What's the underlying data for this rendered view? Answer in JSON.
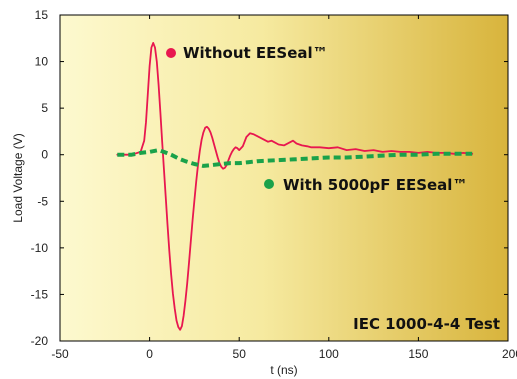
{
  "chart_data": {
    "type": "line",
    "title": "",
    "xlabel": "t (ns)",
    "ylabel": "Load Voltage (V)",
    "xlim": [
      -50,
      200
    ],
    "ylim": [
      -20,
      15
    ],
    "x_ticks": [
      -50,
      0,
      50,
      100,
      150,
      200
    ],
    "y_ticks": [
      -20,
      -15,
      -10,
      -5,
      0,
      5,
      10,
      15
    ],
    "grid": false,
    "background": "yellow-to-gold horizontal gradient",
    "series": [
      {
        "name": "Without EESeal™",
        "color": "#e8174f",
        "style": "solid",
        "x": [
          -18,
          -10,
          -5,
          -3,
          -2,
          -1,
          0,
          1,
          2,
          3,
          4,
          5,
          6,
          7,
          8,
          9,
          10,
          11,
          12,
          13,
          14,
          15,
          16,
          17,
          18,
          19,
          20,
          21,
          22,
          23,
          24,
          25,
          26,
          27,
          28,
          29,
          30,
          31,
          32,
          33,
          34,
          35,
          36,
          37,
          38,
          39,
          40,
          41,
          42,
          43,
          44,
          45,
          46,
          47,
          48,
          49,
          50,
          52,
          54,
          56,
          58,
          60,
          62,
          64,
          66,
          68,
          70,
          72,
          75,
          78,
          80,
          82,
          85,
          88,
          90,
          95,
          100,
          105,
          110,
          115,
          120,
          125,
          130,
          135,
          140,
          145,
          150,
          155,
          160,
          165,
          170,
          175,
          180
        ],
        "values": [
          0,
          0,
          0.3,
          1.5,
          3.5,
          6.5,
          9.5,
          11.5,
          12,
          11.5,
          10,
          7.5,
          4.5,
          1.5,
          -1.5,
          -4.5,
          -7.5,
          -10.3,
          -12.8,
          -14.9,
          -16.5,
          -17.8,
          -18.5,
          -18.8,
          -18.4,
          -17.3,
          -15.7,
          -13.8,
          -11.6,
          -9.3,
          -7,
          -4.9,
          -2.9,
          -1.1,
          0.4,
          1.6,
          2.4,
          2.9,
          3,
          2.8,
          2.4,
          1.8,
          1.1,
          0.4,
          -0.3,
          -0.9,
          -1.3,
          -1.5,
          -1.4,
          -1.1,
          -0.6,
          -0.1,
          0.3,
          0.6,
          0.8,
          0.7,
          0.5,
          0.9,
          1.9,
          2.3,
          2.2,
          2,
          1.8,
          1.6,
          1.4,
          1.5,
          1.3,
          1.1,
          1,
          1.3,
          1.5,
          1.2,
          1,
          0.9,
          0.8,
          0.8,
          0.7,
          0.8,
          0.5,
          0.6,
          0.4,
          0.5,
          0.3,
          0.4,
          0.3,
          0.3,
          0.2,
          0.3,
          0.2,
          0.2,
          0.1,
          0.2,
          0.1
        ]
      },
      {
        "name": "With 5000pF EESeal™",
        "color": "#1aa24a",
        "style": "dashed",
        "x": [
          -18,
          -10,
          -5,
          0,
          5,
          8,
          12,
          16,
          20,
          25,
          30,
          35,
          40,
          45,
          50,
          55,
          60,
          70,
          80,
          90,
          100,
          110,
          120,
          130,
          140,
          150,
          160,
          170,
          180
        ],
        "values": [
          0,
          0,
          0.2,
          0.3,
          0.5,
          0.3,
          0,
          -0.4,
          -0.7,
          -1,
          -1.2,
          -1.1,
          -1,
          -0.9,
          -0.9,
          -0.8,
          -0.7,
          -0.6,
          -0.5,
          -0.4,
          -0.3,
          -0.3,
          -0.2,
          -0.1,
          0,
          0,
          0.1,
          0.1,
          0.1
        ]
      }
    ],
    "annotations": {
      "without_label": "Without EESeal™",
      "with_label": "With 5000pF EESeal™",
      "test_label": "IEC 1000-4-4 Test"
    },
    "colors": {
      "background_start": "#fdf9cf",
      "background_end": "#d8b43c",
      "without": "#e8174f",
      "with": "#1aa24a"
    }
  }
}
